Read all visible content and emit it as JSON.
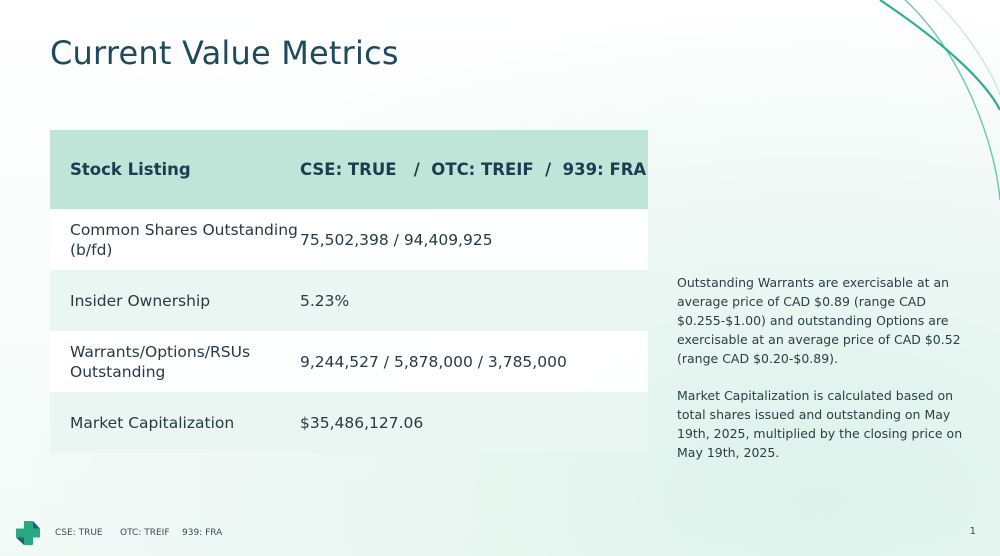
{
  "slide": {
    "title": "Current Value Metrics"
  },
  "table": {
    "header": {
      "label": "Stock Listing",
      "value": "CSE: TRUE   /  OTC: TREIF  /  939: FRA"
    },
    "rows": [
      {
        "label": "Common Shares Outstanding (b/fd)",
        "value": "75,502,398 / 94,409,925"
      },
      {
        "label": "Insider Ownership",
        "value": "5.23%"
      },
      {
        "label": "Warrants/Options/RSUs Outstanding",
        "value": "9,244,527 / 5,878,000 / 3,785,000"
      },
      {
        "label": "Market Capitalization",
        "value": "$35,486,127.06"
      }
    ]
  },
  "notes": {
    "warrants_note": "Outstanding Warrants are exercisable at an average price of CAD $0.89 (range CAD $0.255-$1.00) and outstanding Options are exercisable at an average price of CAD $0.52 (range CAD $0.20-$0.89).",
    "market_cap_note": "Market Capitalization is calculated based on total shares issued and outstanding on May 19th, 2025, multiplied by the closing price on May 19th, 2025."
  },
  "footer": {
    "cse": "CSE: TRUE",
    "otc": "OTC: TREIF",
    "fra": "939: FRA",
    "page_number": "1"
  },
  "colors": {
    "header_fill": "#bfe5d8",
    "alt_row_fill": "#eaf6f1",
    "title_color": "#1f4a5c",
    "logo_green": "#2aa783",
    "logo_teal": "#1f5f73",
    "deco_line": "#2fb08a"
  }
}
